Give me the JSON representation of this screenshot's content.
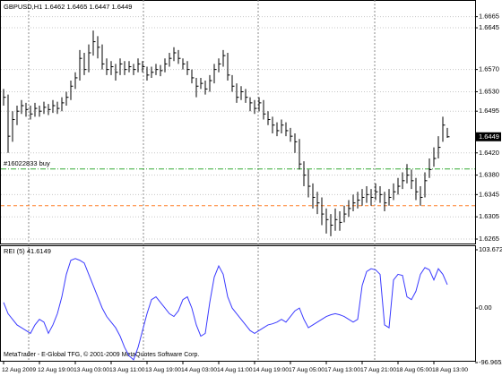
{
  "chart_data": {
    "type": "ohlc",
    "title": "GBPUSD,H1 1.6462 1.6465 1.6447 1.6449",
    "footer": "MetaTrader - E-Global TFG, © 2001-2009 MetaQuotes Software Corp.",
    "color": "#000000",
    "grid": true,
    "ylim": [
      1.6257,
      1.6695
    ],
    "yticks": [
      1.6665,
      1.6645,
      {
        "value": 1.657,
        "label": "1.6570"
      },
      {
        "value": 1.653,
        "label": "1.6530"
      },
      1.6495,
      {
        "value": 1.642,
        "label": "1.6420"
      },
      {
        "value": 1.638,
        "label": "1.6380"
      },
      1.6345,
      1.6305,
      1.6265
    ],
    "current_price": {
      "value": 1.6449,
      "label": "1.6449"
    },
    "order_lines": [
      {
        "label": "#16022833 buy",
        "value": 1.6391,
        "color": "#33aa33"
      },
      {
        "value": 1.6325,
        "color": "#ff7f27"
      }
    ],
    "categories": [
      "12 Aug 2009",
      null,
      null,
      null,
      null,
      null,
      null,
      null,
      "12 Aug 19:00",
      null,
      null,
      null,
      null,
      null,
      null,
      null,
      "13 Aug 03:00",
      null,
      null,
      null,
      null,
      null,
      null,
      null,
      "13 Aug 11:00",
      null,
      null,
      null,
      null,
      null,
      null,
      null,
      "13 Aug 19:00",
      null,
      null,
      null,
      null,
      null,
      null,
      null,
      "14 Aug 03:00",
      null,
      null,
      null,
      null,
      null,
      null,
      null,
      "14 Aug 11:00",
      null,
      null,
      null,
      null,
      null,
      null,
      null,
      "14 Aug 19:00",
      null,
      null,
      null,
      null,
      null,
      null,
      null,
      "17 Aug 05:00",
      null,
      null,
      null,
      null,
      null,
      null,
      null,
      "17 Aug 13:00",
      null,
      null,
      null,
      null,
      null,
      null,
      null,
      "17 Aug 21:00",
      null,
      null,
      null,
      null,
      null,
      null,
      null,
      "18 Aug 05:00",
      null,
      null,
      null,
      null,
      null,
      null,
      null,
      "18 Aug 13:00",
      null,
      null,
      null
    ],
    "high": [
      1.6535,
      1.6525,
      1.6495,
      1.6505,
      1.6515,
      1.651,
      1.6505,
      1.651,
      1.6505,
      1.6512,
      1.6508,
      1.6515,
      1.6512,
      1.652,
      1.653,
      1.655,
      1.6565,
      1.6605,
      1.66,
      1.6615,
      1.664,
      1.663,
      1.6615,
      1.659,
      1.6585,
      1.658,
      1.659,
      1.6585,
      1.6585,
      1.658,
      1.659,
      1.6585,
      1.6575,
      1.6575,
      1.658,
      1.6578,
      1.659,
      1.66,
      1.661,
      1.6605,
      1.659,
      1.6585,
      1.657,
      1.6555,
      1.6555,
      1.655,
      1.656,
      1.658,
      1.659,
      1.6605,
      1.66,
      1.656,
      1.6545,
      1.654,
      1.6535,
      1.652,
      1.6515,
      1.652,
      1.6515,
      1.6495,
      1.6485,
      1.6475,
      1.648,
      1.6475,
      1.6465,
      1.6455,
      1.6445,
      1.6405,
      1.639,
      1.6365,
      1.635,
      1.634,
      1.632,
      1.631,
      1.632,
      1.6315,
      1.6325,
      1.6335,
      1.6345,
      1.635,
      1.6355,
      1.636,
      1.6355,
      1.6365,
      1.636,
      1.635,
      1.6355,
      1.6365,
      1.6375,
      1.6385,
      1.64,
      1.639,
      1.6375,
      1.636,
      1.6385,
      1.641,
      1.643,
      1.645,
      1.6485,
      1.6465
    ],
    "low": [
      1.6505,
      1.642,
      1.644,
      1.647,
      1.649,
      1.6485,
      1.648,
      1.6485,
      1.6485,
      1.649,
      1.6488,
      1.6492,
      1.649,
      1.6495,
      1.6505,
      1.6515,
      1.6535,
      1.655,
      1.656,
      1.6565,
      1.6595,
      1.659,
      1.657,
      1.656,
      1.656,
      1.655,
      1.656,
      1.656,
      1.6565,
      1.656,
      1.6565,
      1.6565,
      1.655,
      1.6555,
      1.656,
      1.6558,
      1.6565,
      1.6575,
      1.6585,
      1.658,
      1.657,
      1.656,
      1.6545,
      1.652,
      1.6535,
      1.6525,
      1.653,
      1.6545,
      1.6565,
      1.6575,
      1.655,
      1.653,
      1.651,
      1.6515,
      1.651,
      1.6495,
      1.649,
      1.6495,
      1.648,
      1.647,
      1.6455,
      1.645,
      1.6455,
      1.645,
      1.644,
      1.642,
      1.639,
      1.636,
      1.634,
      1.632,
      1.631,
      1.629,
      1.6275,
      1.627,
      1.628,
      1.628,
      1.6295,
      1.6305,
      1.6315,
      1.632,
      1.6325,
      1.633,
      1.6325,
      1.6335,
      1.633,
      1.6315,
      1.6325,
      1.6335,
      1.6345,
      1.6355,
      1.6365,
      1.6355,
      1.6335,
      1.6325,
      1.634,
      1.6375,
      1.6395,
      1.641,
      1.644,
      1.6447
    ],
    "close": [
      1.652,
      1.645,
      1.648,
      1.6495,
      1.6505,
      1.6498,
      1.649,
      1.65,
      1.6495,
      1.6502,
      1.6498,
      1.6505,
      1.65,
      1.651,
      1.652,
      1.654,
      1.6555,
      1.659,
      1.657,
      1.66,
      1.662,
      1.661,
      1.658,
      1.657,
      1.6575,
      1.6565,
      1.658,
      1.657,
      1.6575,
      1.657,
      1.658,
      1.6575,
      1.656,
      1.6565,
      1.657,
      1.6568,
      1.658,
      1.659,
      1.66,
      1.659,
      1.658,
      1.657,
      1.6555,
      1.654,
      1.6545,
      1.6535,
      1.655,
      1.657,
      1.658,
      1.6595,
      1.656,
      1.654,
      1.652,
      1.653,
      1.652,
      1.651,
      1.65,
      1.651,
      1.649,
      1.648,
      1.647,
      1.646,
      1.647,
      1.646,
      1.645,
      1.644,
      1.64,
      1.638,
      1.636,
      1.634,
      1.633,
      1.631,
      1.63,
      1.629,
      1.63,
      1.6295,
      1.631,
      1.632,
      1.633,
      1.6335,
      1.634,
      1.6345,
      1.634,
      1.635,
      1.6345,
      1.633,
      1.634,
      1.635,
      1.636,
      1.637,
      1.638,
      1.637,
      1.635,
      1.634,
      1.637,
      1.639,
      1.641,
      1.643,
      1.647,
      1.6449
    ],
    "indicator": {
      "type": "line",
      "title": "REI (5) 41.6149",
      "color": "#3a3aff",
      "ylim": [
        -96.9652,
        103.6724
      ],
      "yticks": [
        103.6724,
        {
          "value": 0,
          "label": "0.00"
        },
        -96.9652
      ],
      "values": [
        10,
        -10,
        -20,
        -30,
        -35,
        -40,
        -45,
        -30,
        -20,
        -25,
        -45,
        -30,
        -10,
        20,
        60,
        85,
        88,
        85,
        80,
        60,
        40,
        20,
        0,
        -15,
        -25,
        -35,
        -50,
        -70,
        -85,
        -92,
        -70,
        -40,
        -10,
        15,
        20,
        10,
        0,
        -10,
        -15,
        -5,
        15,
        20,
        0,
        -30,
        -50,
        -45,
        10,
        55,
        75,
        60,
        20,
        0,
        -10,
        -20,
        -30,
        -40,
        -45,
        -40,
        -35,
        -30,
        -28,
        -25,
        -20,
        -25,
        -15,
        -5,
        0,
        -20,
        -35,
        -30,
        -25,
        -20,
        -15,
        -12,
        -10,
        -12,
        -15,
        -20,
        -25,
        -20,
        40,
        65,
        70,
        68,
        60,
        -30,
        -35,
        50,
        60,
        58,
        20,
        15,
        30,
        60,
        72,
        68,
        50,
        70,
        60,
        41.6149
      ]
    }
  }
}
